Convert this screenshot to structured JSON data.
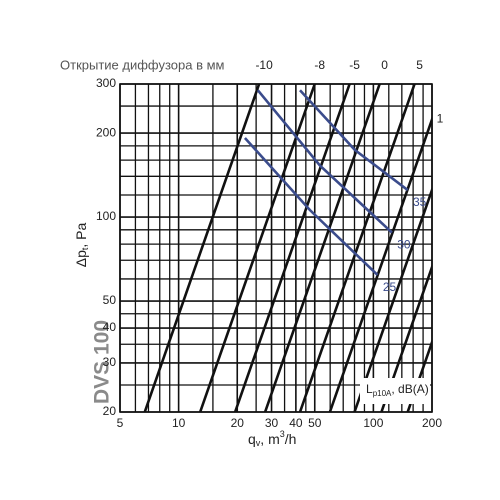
{
  "chart_data": {
    "type": "line",
    "title": "Открытие диффузора в мм",
    "model": "DVS 100",
    "x_label": {
      "main": "q",
      "sub": "v",
      "unit": ", m",
      "sup": "3",
      "tail": "/h"
    },
    "y_label": {
      "main": "Δp",
      "sub": "t",
      "unit": ", Pa"
    },
    "noise_label": {
      "main": "L",
      "sub": "p10A",
      "unit": ", dB(A)"
    },
    "log_x": true,
    "log_y": true,
    "xlim": [
      5,
      200
    ],
    "ylim": [
      20,
      300
    ],
    "xticks": [
      5,
      10,
      20,
      30,
      40,
      50,
      100,
      200
    ],
    "yticks": [
      20,
      30,
      40,
      50,
      100,
      200,
      300
    ],
    "xgrid": [
      6,
      7,
      8,
      9,
      15,
      25,
      35,
      45,
      60,
      70,
      80,
      90,
      120,
      140,
      160,
      180
    ],
    "ygrid": [
      25,
      35,
      45,
      60,
      70,
      80,
      90,
      120,
      140,
      160,
      180,
      250
    ],
    "line_color": "#111111",
    "noise_color": "#3b4c8c",
    "lines": [
      {
        "label": "-10",
        "x": [
          6.7,
          25.9
        ],
        "y": [
          20,
          300
        ]
      },
      {
        "label": "-8",
        "x": [
          12.9,
          50
        ],
        "y": [
          20,
          300
        ]
      },
      {
        "label": "-5",
        "x": [
          19.5,
          75.5
        ],
        "y": [
          20,
          300
        ]
      },
      {
        "label": "0",
        "x": [
          27.8,
          107.7
        ],
        "y": [
          20,
          300
        ]
      },
      {
        "label": "5",
        "x": [
          42,
          162.7
        ],
        "y": [
          20,
          300
        ]
      },
      {
        "label": "1",
        "x": [
          59.8,
          231.6
        ],
        "y": [
          20,
          300
        ]
      },
      {
        "x": [
          80,
          309.8
        ],
        "y": [
          20,
          300
        ]
      },
      {
        "x": [
          110,
          426
        ],
        "y": [
          20,
          300
        ]
      },
      {
        "x": [
          150,
          581
        ],
        "y": [
          20,
          300
        ]
      }
    ],
    "noise_lines": [
      {
        "label": "35",
        "x": [
          42,
          80.4,
          150
        ],
        "y": [
          285,
          174,
          125
        ]
      },
      {
        "label": "30",
        "x": [
          25.5,
          53.2,
          124.5
        ],
        "y": [
          285,
          153,
          88
        ]
      },
      {
        "label": "25",
        "x": [
          21.9,
          47.2,
          105
        ],
        "y": [
          192,
          106,
          62
        ]
      }
    ]
  }
}
